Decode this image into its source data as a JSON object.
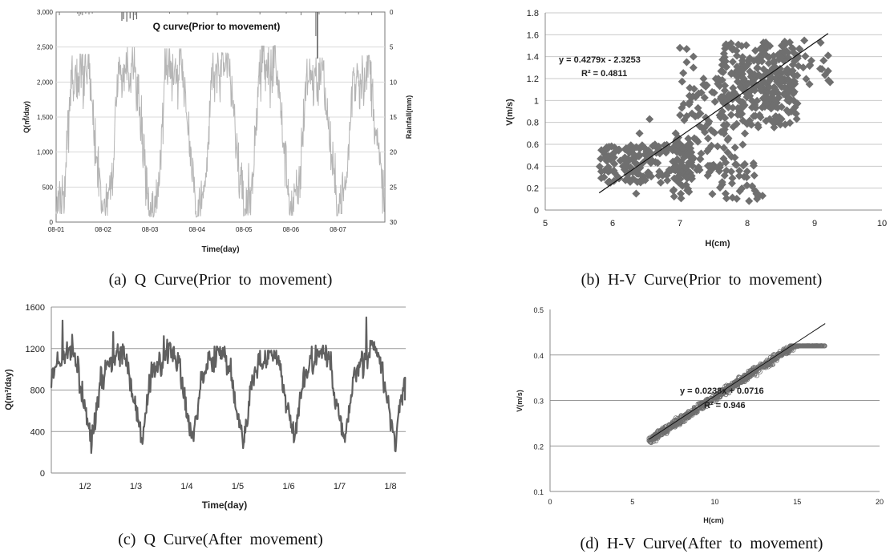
{
  "captions": {
    "a": "(a)  Q  Curve(Prior  to  movement)",
    "b": "(b)  H-V  Curve(Prior  to  movement)",
    "c": "(c)  Q  Curve(After  movement)",
    "d": "(d)  H-V  Curve(After  to  movement)"
  },
  "chart_data": [
    {
      "id": "a",
      "type": "line",
      "title": "Q curve(Prior to movement)",
      "xlabel": "Time(day)",
      "ylabel": "Q(㎥/day)",
      "y2label": "Rainfall(mm)",
      "categories": [
        "08-01",
        "08-02",
        "08-03",
        "08-04",
        "08-05",
        "08-06",
        "08-07"
      ],
      "ylim": [
        0,
        3000
      ],
      "yticks": [
        "0",
        "500",
        "1,000",
        "1,500",
        "2,000",
        "2,500",
        "3,000"
      ],
      "y2lim": [
        30,
        0
      ],
      "y2ticks": [
        "0",
        "5",
        "10",
        "15",
        "20",
        "25",
        "30"
      ],
      "grid": true,
      "daily_min": [
        200,
        150,
        120,
        140,
        160,
        150,
        200
      ],
      "daily_max": [
        2400,
        2500,
        2480,
        2420,
        2520,
        2350,
        2380
      ],
      "colors": {
        "line": "#b5b5b5",
        "rain": "#777777"
      }
    },
    {
      "id": "b",
      "type": "scatter",
      "xlabel": "H(cm)",
      "ylabel": "V(m/s)",
      "xlim": [
        5,
        10
      ],
      "ylim": [
        0,
        1.8
      ],
      "xticks": [
        "5",
        "6",
        "7",
        "8",
        "9",
        "10"
      ],
      "yticks": [
        "0",
        "0.2",
        "0.4",
        "0.6",
        "0.8",
        "1",
        "1.2",
        "1.4",
        "1.6",
        "1.8"
      ],
      "grid": true,
      "fit": {
        "slope": 0.4279,
        "intercept": -2.3253,
        "x_range": [
          5.8,
          9.2
        ]
      },
      "equation": "y = 0.4279x - 2.3253",
      "r2": "R² = 0.4811",
      "colors": {
        "marker": "#6f6f6f",
        "fit": "#111111"
      }
    },
    {
      "id": "c",
      "type": "line",
      "xlabel": "Time(day)",
      "ylabel": "Q(m³/day)",
      "categories": [
        "1/2",
        "1/3",
        "1/4",
        "1/5",
        "1/6",
        "1/7",
        "1/8"
      ],
      "ylim": [
        0,
        1600
      ],
      "yticks": [
        "0",
        "400",
        "800",
        "1200",
        "1600"
      ],
      "grid": true,
      "daily_peak": [
        1470,
        1360,
        1320,
        1220,
        1180,
        1230,
        1500
      ],
      "daily_min": [
        180,
        220,
        210,
        200,
        200,
        180
      ],
      "colors": {
        "line": "#606060"
      }
    },
    {
      "id": "d",
      "type": "scatter",
      "xlabel": "H(cm)",
      "ylabel": "V(m/s)",
      "xlim": [
        0,
        20
      ],
      "ylim": [
        0.1,
        0.5
      ],
      "xticks": [
        "0",
        "5",
        "10",
        "15",
        "20"
      ],
      "yticks": [
        "0.1",
        "0.2",
        "0.3",
        "0.4",
        "0.5"
      ],
      "grid": true,
      "fit": {
        "slope": 0.0238,
        "intercept": 0.0716,
        "x_range": [
          6,
          16.7
        ]
      },
      "equation": "y = 0.0238x + 0.0716",
      "r2": "R² = 0.946",
      "colors": {
        "marker": "#6f6f6f",
        "fit": "#111111"
      }
    }
  ]
}
